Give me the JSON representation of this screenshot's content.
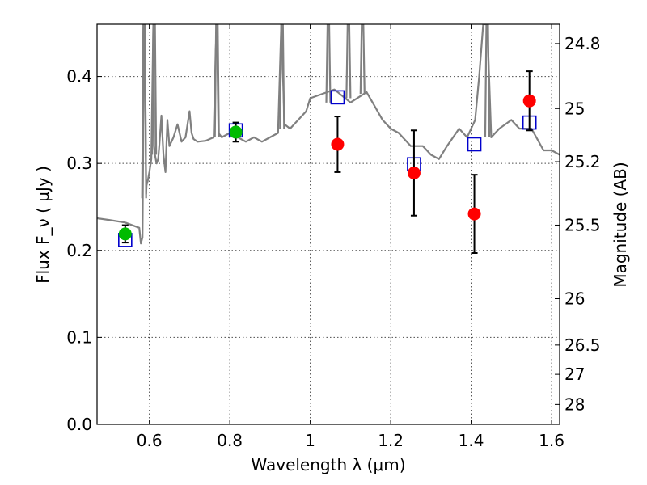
{
  "chart_data": {
    "type": "scatter",
    "title": "",
    "xlabel": "Wavelength  λ (μm)",
    "ylabel": "Flux  F_ν  ( μJy )",
    "ylabel_right": "Magnitude (AB)",
    "xlim": [
      0.47,
      1.62
    ],
    "ylim": [
      0.0,
      0.46
    ],
    "grid": true,
    "x_ticks": [
      0.6,
      0.8,
      1.0,
      1.2,
      1.4,
      1.6
    ],
    "x_tick_labels": [
      "0.6",
      "0.8",
      "1",
      "1.2",
      "1.4",
      "1.6"
    ],
    "y_ticks": [
      0.0,
      0.1,
      0.2,
      0.3,
      0.4
    ],
    "y_tick_labels": [
      "0.0",
      "0.1",
      "0.2",
      "0.3",
      "0.4"
    ],
    "mag_ticks": [
      {
        "label": "24.8",
        "flux": 0.4378
      },
      {
        "label": "25",
        "flux": 0.3631
      },
      {
        "label": "25.2",
        "flux": 0.302
      },
      {
        "label": "25.5",
        "flux": 0.2291
      },
      {
        "label": "26",
        "flux": 0.1445
      },
      {
        "label": "26.5",
        "flux": 0.0912
      },
      {
        "label": "27",
        "flux": 0.0575
      },
      {
        "label": "28",
        "flux": 0.0229
      }
    ],
    "series": [
      {
        "name": "green photometry",
        "color": "#00bb00",
        "marker": "circle",
        "points": [
          {
            "x": 0.54,
            "y": 0.219,
            "err": 0.01
          },
          {
            "x": 0.815,
            "y": 0.336,
            "err": 0.011
          }
        ]
      },
      {
        "name": "red photometry",
        "color": "#ff0000",
        "marker": "circle",
        "points": [
          {
            "x": 1.068,
            "y": 0.322,
            "err": 0.032
          },
          {
            "x": 1.258,
            "y": 0.289,
            "err": 0.049
          },
          {
            "x": 1.408,
            "y": 0.242,
            "err": 0.045
          },
          {
            "x": 1.545,
            "y": 0.372,
            "err": 0.034
          }
        ]
      },
      {
        "name": "model synthetic photometry",
        "color": "#0000cc",
        "marker": "square",
        "points": [
          {
            "x": 0.54,
            "y": 0.212
          },
          {
            "x": 0.815,
            "y": 0.338
          },
          {
            "x": 1.068,
            "y": 0.376
          },
          {
            "x": 1.258,
            "y": 0.299
          },
          {
            "x": 1.408,
            "y": 0.322
          },
          {
            "x": 1.545,
            "y": 0.347
          }
        ]
      },
      {
        "name": "model spectrum",
        "color": "#808080",
        "marker": "line",
        "x": [
          0.47,
          0.5,
          0.54,
          0.575,
          0.579,
          0.583,
          0.587,
          0.589,
          0.592,
          0.593,
          0.596,
          0.6,
          0.605,
          0.61,
          0.612,
          0.614,
          0.618,
          0.622,
          0.625,
          0.63,
          0.635,
          0.64,
          0.645,
          0.65,
          0.66,
          0.67,
          0.68,
          0.69,
          0.7,
          0.705,
          0.71,
          0.72,
          0.74,
          0.76,
          0.765,
          0.768,
          0.772,
          0.78,
          0.8,
          0.82,
          0.84,
          0.86,
          0.88,
          0.9,
          0.92,
          0.928,
          0.936,
          0.95,
          0.97,
          0.99,
          1.0,
          1.03,
          1.06,
          1.1,
          1.14,
          1.18,
          1.2,
          1.22,
          1.25,
          1.28,
          1.3,
          1.32,
          1.34,
          1.37,
          1.39,
          1.41,
          1.42,
          1.43,
          1.44,
          1.45,
          1.47,
          1.5,
          1.52,
          1.55,
          1.58,
          1.6,
          1.62
        ],
        "y": [
          0.237,
          0.235,
          0.232,
          0.226,
          0.208,
          0.215,
          0.46,
          0.46,
          0.265,
          0.275,
          0.28,
          0.29,
          0.305,
          0.46,
          0.32,
          0.31,
          0.3,
          0.305,
          0.322,
          0.355,
          0.31,
          0.29,
          0.35,
          0.32,
          0.33,
          0.345,
          0.325,
          0.33,
          0.36,
          0.335,
          0.328,
          0.325,
          0.326,
          0.33,
          0.43,
          0.46,
          0.335,
          0.33,
          0.335,
          0.33,
          0.325,
          0.33,
          0.325,
          0.33,
          0.335,
          0.46,
          0.345,
          0.34,
          0.35,
          0.36,
          0.375,
          0.38,
          0.385,
          0.37,
          0.382,
          0.35,
          0.34,
          0.335,
          0.32,
          0.32,
          0.31,
          0.305,
          0.32,
          0.34,
          0.33,
          0.35,
          0.4,
          0.46,
          0.46,
          0.33,
          0.34,
          0.35,
          0.34,
          0.34,
          0.315,
          0.315,
          0.31
        ],
        "spikes": [
          {
            "x": 0.587,
            "y0": 0.26,
            "y1": 0.46
          },
          {
            "x": 0.612,
            "y0": 0.31,
            "y1": 0.46
          },
          {
            "x": 0.768,
            "y0": 0.33,
            "y1": 0.46
          },
          {
            "x": 0.93,
            "y0": 0.34,
            "y1": 0.46
          },
          {
            "x": 1.045,
            "y0": 0.37,
            "y1": 0.46
          },
          {
            "x": 1.095,
            "y0": 0.375,
            "y1": 0.46
          },
          {
            "x": 1.13,
            "y0": 0.38,
            "y1": 0.46
          },
          {
            "x": 1.44,
            "y0": 0.33,
            "y1": 0.46
          }
        ]
      }
    ]
  }
}
